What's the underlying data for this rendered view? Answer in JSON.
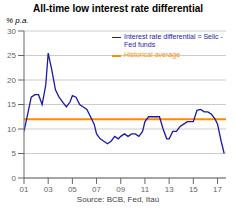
{
  "chart_data": {
    "type": "line",
    "title": "All-time low interest rate differential",
    "ylabel": "% p.a.",
    "xlabel": "Source: BCB, Fed, Itaú",
    "x": [
      2001.0,
      2001.3,
      2001.6,
      2001.9,
      2002.2,
      2002.5,
      2002.8,
      2003.0,
      2003.3,
      2003.6,
      2003.9,
      2004.2,
      2004.5,
      2004.8,
      2005.0,
      2005.3,
      2005.6,
      2005.9,
      2006.2,
      2006.5,
      2006.8,
      2007.0,
      2007.3,
      2007.6,
      2007.9,
      2008.2,
      2008.5,
      2008.8,
      2009.0,
      2009.3,
      2009.6,
      2009.9,
      2010.2,
      2010.5,
      2010.8,
      2011.0,
      2011.3,
      2011.6,
      2011.9,
      2012.2,
      2012.5,
      2012.8,
      2013.0,
      2013.3,
      2013.6,
      2013.9,
      2014.2,
      2014.5,
      2014.8,
      2015.0,
      2015.3,
      2015.6,
      2015.9,
      2016.2,
      2016.5,
      2016.8,
      2017.0,
      2017.3,
      2017.55
    ],
    "series": [
      {
        "name": "Interest rate differential = Selic - Fed funds",
        "color": "#1a1aaa",
        "values": [
          9.5,
          13.0,
          16.5,
          17.0,
          17.0,
          15.0,
          19.0,
          25.5,
          22.0,
          18.0,
          16.5,
          15.5,
          14.5,
          15.5,
          16.8,
          16.5,
          15.0,
          14.5,
          14.0,
          12.5,
          11.0,
          9.0,
          8.0,
          7.5,
          7.0,
          7.5,
          8.5,
          8.0,
          8.5,
          9.0,
          8.5,
          9.0,
          9.0,
          8.5,
          9.5,
          11.5,
          12.5,
          12.5,
          12.5,
          12.5,
          10.0,
          8.0,
          8.0,
          9.5,
          9.5,
          10.5,
          11.0,
          11.5,
          11.5,
          11.5,
          13.8,
          14.0,
          13.5,
          13.5,
          13.0,
          12.0,
          11.0,
          7.5,
          5.0
        ]
      }
    ],
    "historical_average": {
      "name": "Historical average",
      "value": 12.0,
      "color": "#ff8c00"
    },
    "xlim": [
      2001,
      2017.7
    ],
    "xticks": [
      {
        "value": 2001,
        "label": "01"
      },
      {
        "value": 2003,
        "label": "03"
      },
      {
        "value": 2005,
        "label": "05"
      },
      {
        "value": 2007,
        "label": "07"
      },
      {
        "value": 2009,
        "label": "09"
      },
      {
        "value": 2011,
        "label": "11"
      },
      {
        "value": 2013,
        "label": "13"
      },
      {
        "value": 2015,
        "label": "15"
      },
      {
        "value": 2017,
        "label": "17"
      }
    ],
    "ylim": [
      0,
      30
    ],
    "yticks": [
      0,
      5,
      10,
      15,
      20,
      25,
      30
    ],
    "grid": true
  }
}
